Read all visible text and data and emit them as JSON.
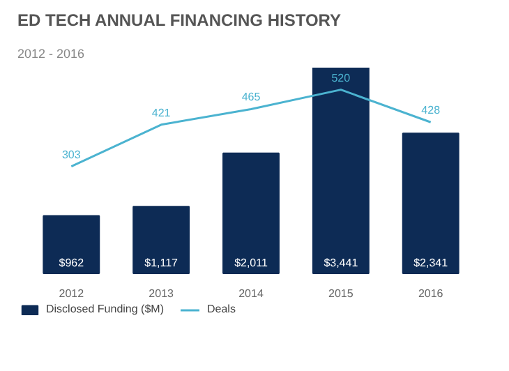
{
  "chart_data": {
    "type": "bar",
    "title": "ED TECH ANNUAL FINANCING HISTORY",
    "subtitle": "2012 - 2016",
    "categories": [
      "2012",
      "2013",
      "2014",
      "2015",
      "2016"
    ],
    "series": [
      {
        "name": "Disclosed Funding ($M)",
        "color": "#0d2b55",
        "values": [
          962,
          1117,
          2011,
          3441,
          2341
        ],
        "value_labels": [
          "$962",
          "$1,117",
          "$2,011",
          "$3,441",
          "$2,341"
        ]
      },
      {
        "name": "Deals",
        "type": "line",
        "axis": "y2",
        "color": "#4bb3d0",
        "values": [
          303,
          421,
          465,
          520,
          428
        ]
      }
    ],
    "data_labels": true,
    "legend": "bottom",
    "tick_labels": "x"
  }
}
